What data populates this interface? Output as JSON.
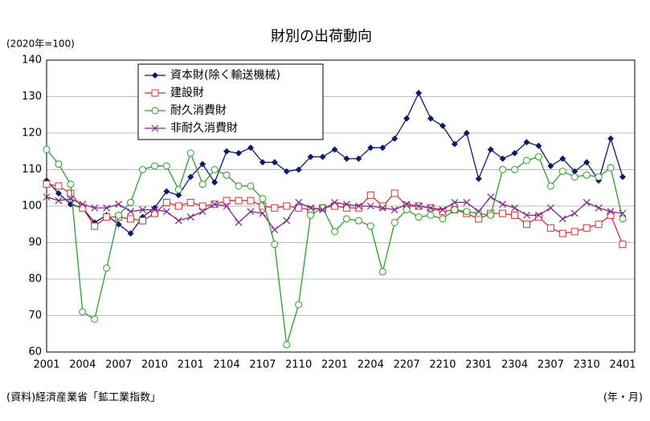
{
  "chart_data": {
    "type": "line",
    "title": "財別の出荷動向",
    "y_unit_label": "(2020年=100)",
    "x_unit_label": "(年・月)",
    "source": "(資料)経済産業省「鉱工業指数」",
    "categories": [
      "2001",
      null,
      null,
      "2004",
      null,
      null,
      "2007",
      null,
      null,
      "2010",
      null,
      null,
      "2101",
      null,
      null,
      "2104",
      null,
      null,
      "2107",
      null,
      null,
      "2110",
      null,
      null,
      "2201",
      null,
      null,
      "2204",
      null,
      null,
      "2207",
      null,
      null,
      "2210",
      null,
      null,
      "2301",
      null,
      null,
      "2304",
      null,
      null,
      "2307",
      null,
      null,
      "2310",
      null,
      null,
      "2401"
    ],
    "ylim": [
      60,
      140
    ],
    "yticks": [
      60,
      70,
      80,
      90,
      100,
      110,
      120,
      130,
      140
    ],
    "grid": true,
    "legend": "top-left",
    "series": [
      {
        "name": "資本財(除く輸送機械)",
        "color": "#0d1a6b",
        "marker": "diamond",
        "values": [
          107,
          103.5,
          100.5,
          99.5,
          95.5,
          97.5,
          95,
          92.5,
          97,
          99.5,
          104,
          103,
          108,
          111.5,
          106.5,
          115,
          114.5,
          116,
          112,
          112,
          109.5,
          110,
          113.5,
          113.5,
          115.5,
          113,
          113,
          116,
          116,
          118.5,
          124,
          131,
          124,
          122,
          117,
          120,
          107.5,
          115.5,
          113,
          114.5,
          117.5,
          116.5,
          111,
          113,
          109.5,
          112,
          107,
          118.5,
          108
        ]
      },
      {
        "name": "建設財",
        "color": "#d03030",
        "marker": "square",
        "values": [
          106,
          105.5,
          103.5,
          99.5,
          94.5,
          97,
          97,
          96.5,
          96,
          98,
          101,
          100,
          101,
          100,
          100.5,
          101.5,
          101.5,
          101.5,
          100,
          99.5,
          100,
          99.5,
          99,
          99.5,
          100,
          99.5,
          99.5,
          103,
          100,
          103.5,
          100,
          100,
          99.5,
          98.5,
          99,
          98,
          96.5,
          98,
          98,
          97.5,
          95,
          97,
          94,
          92.5,
          93,
          94,
          95,
          97.5,
          89.5
        ]
      },
      {
        "name": "耐久消費財",
        "color": "#2c9e2c",
        "marker": "circle",
        "values": [
          115.5,
          111.5,
          106,
          71,
          69,
          83,
          97.5,
          101,
          110,
          111,
          111,
          104.5,
          114.5,
          106,
          110,
          108.5,
          105.5,
          105.5,
          102,
          89.5,
          62,
          73,
          97.5,
          99.5,
          93,
          96.5,
          96,
          94.5,
          82,
          95.5,
          99,
          97,
          97.5,
          96.5,
          99,
          98.5,
          98,
          97.5,
          110,
          110,
          112.5,
          113.5,
          105.5,
          109.5,
          108,
          108.5,
          108,
          110.5,
          96.5
        ]
      },
      {
        "name": "非耐久消費財",
        "color": "#7a2a8a",
        "marker": "x",
        "values": [
          102.5,
          101.5,
          102,
          100.5,
          99.5,
          99.5,
          100.5,
          98.5,
          99,
          99,
          98.5,
          96,
          97,
          98.5,
          100.5,
          100,
          95.5,
          98.5,
          98,
          93.5,
          96,
          101,
          99.5,
          99,
          101,
          100.5,
          100,
          100,
          99.5,
          99,
          100.5,
          100,
          99.5,
          99,
          101,
          101,
          98.5,
          102.5,
          100.5,
          99.5,
          97.5,
          97.5,
          99.5,
          96.5,
          98,
          101,
          99.5,
          98.5,
          98
        ]
      }
    ]
  }
}
